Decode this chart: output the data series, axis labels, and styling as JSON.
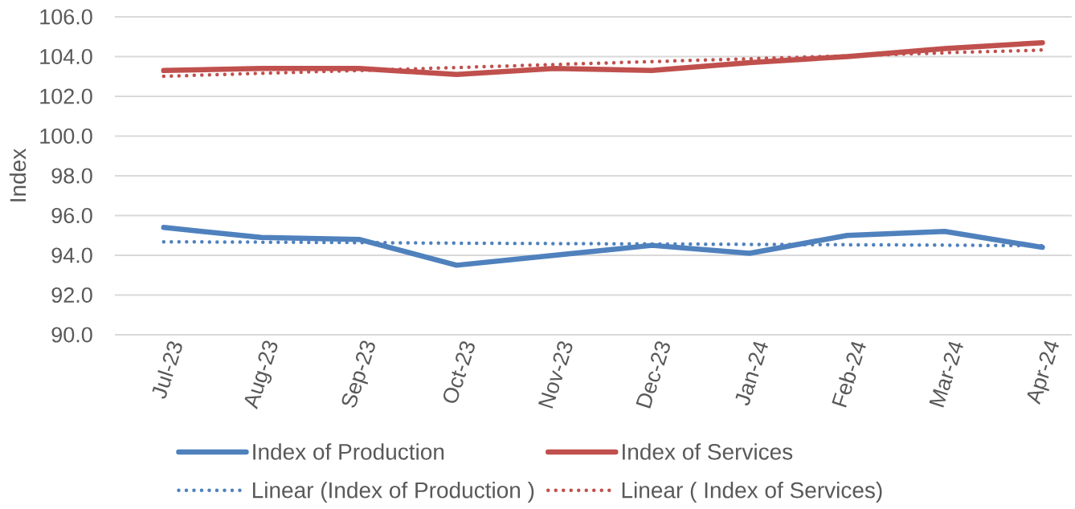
{
  "chart_data": {
    "type": "line",
    "ylabel": "Index",
    "categories": [
      "Jul-23",
      "Aug-23",
      "Sep-23",
      "Oct-23",
      "Nov-23",
      "Dec-23",
      "Jan-24",
      "Feb-24",
      "Mar-24",
      "Apr-24"
    ],
    "series": [
      {
        "name": "Index of Production",
        "color": "#4f81bd",
        "values": [
          95.4,
          94.9,
          94.8,
          93.5,
          94.0,
          94.5,
          94.1,
          95.0,
          95.2,
          94.4
        ]
      },
      {
        "name": "Index of Services",
        "color": "#c0504d",
        "values": [
          103.3,
          103.4,
          103.4,
          103.1,
          103.4,
          103.3,
          103.7,
          104.0,
          104.4,
          104.7
        ]
      },
      {
        "name": "Linear (Index of Production )",
        "color": "#4f81bd",
        "line_style": "dotted",
        "values": [
          94.68,
          94.66,
          94.64,
          94.61,
          94.59,
          94.57,
          94.55,
          94.53,
          94.51,
          94.48
        ]
      },
      {
        "name": "Linear ( Index of Services)",
        "color": "#c0504d",
        "line_style": "dotted",
        "values": [
          103.01,
          103.16,
          103.3,
          103.45,
          103.6,
          103.75,
          103.89,
          104.04,
          104.19,
          104.33
        ]
      }
    ],
    "ylim": [
      90,
      106
    ],
    "yticks": [
      {
        "value": 90,
        "label": "90.0"
      },
      {
        "value": 92,
        "label": "92.0"
      },
      {
        "value": 94,
        "label": "94.0"
      },
      {
        "value": 96,
        "label": "96.0"
      },
      {
        "value": 98,
        "label": "98.0"
      },
      {
        "value": 100,
        "label": "100.0"
      },
      {
        "value": 102,
        "label": "102.0"
      },
      {
        "value": 104,
        "label": "104.0"
      },
      {
        "value": 106,
        "label": "106.0"
      }
    ],
    "grid": "y",
    "legend": "bottom",
    "marker": "none",
    "line_style": "solid"
  }
}
